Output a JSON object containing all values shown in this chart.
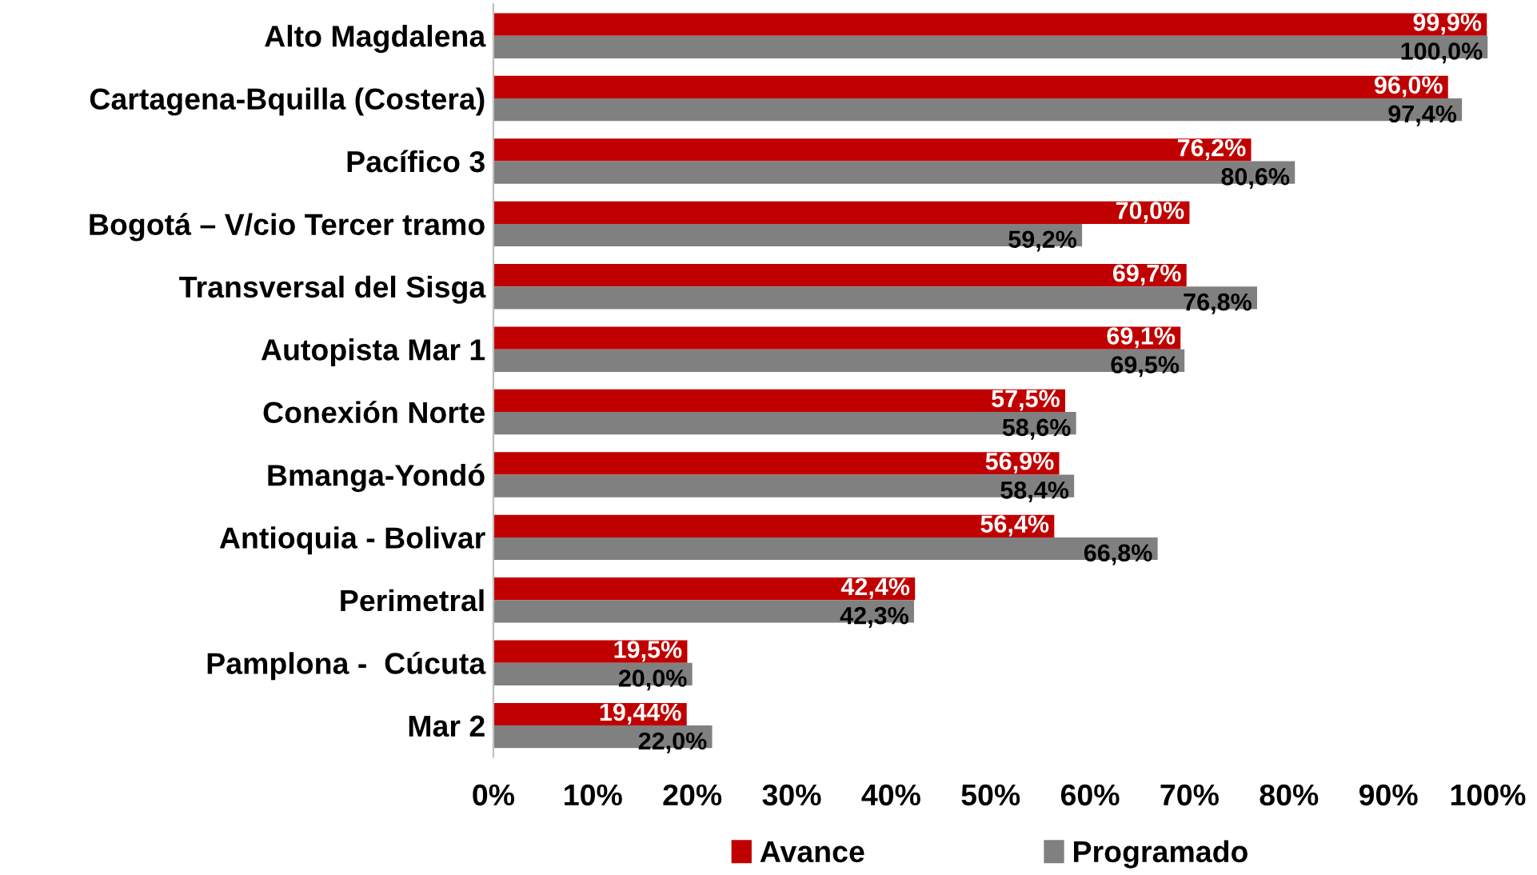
{
  "chart_data": {
    "type": "bar",
    "orientation": "horizontal",
    "categories": [
      "Alto Magdalena",
      "Cartagena-Bquilla (Costera)",
      "Pacífico 3",
      "Bogotá – V/cio Tercer tramo",
      "Transversal del Sisga",
      "Autopista Mar 1",
      "Conexión Norte",
      "Bmanga-Yondó",
      "Antioquia - Bolivar",
      "Perimetral",
      "Pamplona -  Cúcuta",
      "Mar 2"
    ],
    "series": [
      {
        "name": "Avance",
        "color": "#c00000",
        "values": [
          99.9,
          96.0,
          76.2,
          70.0,
          69.7,
          69.1,
          57.5,
          56.9,
          56.4,
          42.4,
          19.5,
          19.44
        ],
        "value_labels": [
          "99,9%",
          "96,0%",
          "76,2%",
          "70,0%",
          "69,7%",
          "69,1%",
          "57,5%",
          "56,9%",
          "56,4%",
          "42,4%",
          "19,5%",
          "19,44%"
        ]
      },
      {
        "name": "Programado",
        "color": "#808080",
        "values": [
          100.0,
          97.4,
          80.6,
          59.2,
          76.8,
          69.5,
          58.6,
          58.4,
          66.8,
          42.3,
          20.0,
          22.0
        ],
        "value_labels": [
          "100,0%",
          "97,4%",
          "80,6%",
          "59,2%",
          "76,8%",
          "69,5%",
          "58,6%",
          "58,4%",
          "66,8%",
          "42,3%",
          "20,0%",
          "22,0%"
        ]
      }
    ],
    "xlim": [
      0,
      100
    ],
    "xticks": [
      {
        "value": 0,
        "label": "0%"
      },
      {
        "value": 10,
        "label": "10%"
      },
      {
        "value": 20,
        "label": "20%"
      },
      {
        "value": 30,
        "label": "30%"
      },
      {
        "value": 40,
        "label": "40%"
      },
      {
        "value": 50,
        "label": "50%"
      },
      {
        "value": 60,
        "label": "60%"
      },
      {
        "value": 70,
        "label": "70%"
      },
      {
        "value": 80,
        "label": "80%"
      },
      {
        "value": 90,
        "label": "90%"
      },
      {
        "value": 100,
        "label": "100%"
      }
    ],
    "grid": false,
    "legend": "bottom"
  }
}
